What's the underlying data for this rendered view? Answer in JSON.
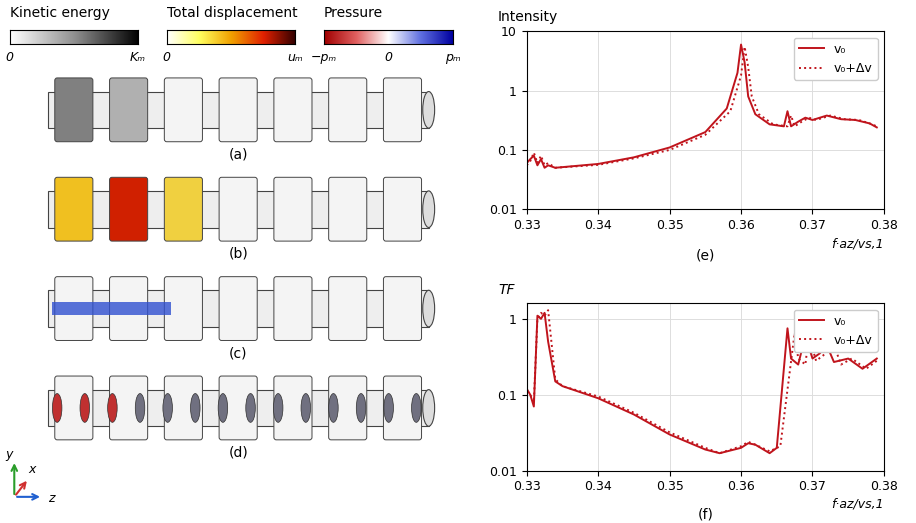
{
  "figure_panels": {
    "labels": [
      "(a)",
      "(b)",
      "(c)",
      "(d)"
    ],
    "axes_triad": [
      "y",
      "x",
      "z"
    ]
  },
  "colorbars": [
    {
      "label": "Kinetic energy",
      "ticks": [
        "0",
        "Kₘ"
      ]
    },
    {
      "label": "Total displacement",
      "ticks": [
        "0",
        "uₘ"
      ]
    },
    {
      "label": "Pressure",
      "ticks": [
        "−pₘ",
        "0",
        "pₘ"
      ]
    }
  ],
  "chart_data": [
    {
      "type": "line",
      "title": "Intensity",
      "x_label": "f·az/vs,1",
      "panel_label": "(e)",
      "log": "y",
      "grid": true,
      "legend": "upper right",
      "xlim": [
        0.33,
        0.38
      ],
      "xticks": [
        0.33,
        0.34,
        0.35,
        0.36,
        0.37,
        0.38
      ],
      "ylim": [
        0.01,
        10
      ],
      "yticks": [
        0.01,
        0.1,
        1,
        10
      ],
      "series": [
        {
          "name": "v₀",
          "color": "#c0141c",
          "line_style": "solid",
          "x": [
            0.33,
            0.3305,
            0.331,
            0.3315,
            0.332,
            0.3325,
            0.333,
            0.334,
            0.34,
            0.345,
            0.35,
            0.355,
            0.358,
            0.3595,
            0.36,
            0.3605,
            0.361,
            0.362,
            0.364,
            0.366,
            0.3665,
            0.367,
            0.368,
            0.369,
            0.37,
            0.372,
            0.374,
            0.376,
            0.378,
            0.379
          ],
          "values": [
            0.06,
            0.07,
            0.08,
            0.055,
            0.07,
            0.05,
            0.055,
            0.05,
            0.058,
            0.075,
            0.11,
            0.2,
            0.5,
            2.0,
            6.0,
            3.0,
            0.8,
            0.4,
            0.27,
            0.25,
            0.45,
            0.25,
            0.3,
            0.35,
            0.32,
            0.38,
            0.33,
            0.32,
            0.28,
            0.24
          ]
        },
        {
          "name": "v₀+Δv",
          "color": "#c0141c",
          "line_style": "dotted",
          "x": [
            0.33,
            0.3305,
            0.331,
            0.3315,
            0.332,
            0.3325,
            0.333,
            0.334,
            0.34,
            0.345,
            0.35,
            0.355,
            0.3585,
            0.36,
            0.3605,
            0.361,
            0.3615,
            0.3625,
            0.3645,
            0.3665,
            0.367,
            0.3675,
            0.3685,
            0.3695,
            0.3705,
            0.3725,
            0.3745,
            0.3765,
            0.378,
            0.379
          ],
          "values": [
            0.055,
            0.065,
            0.09,
            0.06,
            0.08,
            0.055,
            0.06,
            0.05,
            0.056,
            0.072,
            0.1,
            0.18,
            0.45,
            1.8,
            5.5,
            2.5,
            0.8,
            0.4,
            0.27,
            0.25,
            0.38,
            0.25,
            0.3,
            0.35,
            0.32,
            0.38,
            0.33,
            0.32,
            0.28,
            0.25
          ]
        }
      ]
    },
    {
      "type": "line",
      "title": "TF",
      "x_label": "f·az/vs,1",
      "panel_label": "(f)",
      "log": "y",
      "grid": true,
      "legend": "upper right",
      "xlim": [
        0.33,
        0.38
      ],
      "xticks": [
        0.33,
        0.34,
        0.35,
        0.36,
        0.37,
        0.38
      ],
      "ylim": [
        0.01,
        1.6
      ],
      "yticks": [
        0.01,
        0.1,
        1
      ],
      "series": [
        {
          "name": "v₀",
          "color": "#c0141c",
          "line_style": "solid",
          "x": [
            0.33,
            0.3305,
            0.331,
            0.3315,
            0.332,
            0.3325,
            0.333,
            0.334,
            0.335,
            0.34,
            0.345,
            0.35,
            0.355,
            0.357,
            0.36,
            0.361,
            0.362,
            0.364,
            0.365,
            0.3665,
            0.367,
            0.368,
            0.369,
            0.37,
            0.371,
            0.372,
            0.373,
            0.375,
            0.377,
            0.379
          ],
          "values": [
            0.12,
            0.1,
            0.07,
            1.1,
            1.0,
            1.2,
            0.5,
            0.15,
            0.13,
            0.09,
            0.055,
            0.03,
            0.019,
            0.017,
            0.02,
            0.023,
            0.022,
            0.017,
            0.02,
            0.75,
            0.3,
            0.25,
            0.6,
            0.3,
            0.35,
            0.45,
            0.27,
            0.3,
            0.22,
            0.3
          ]
        },
        {
          "name": "v₀+Δv",
          "color": "#c0141c",
          "line_style": "dotted",
          "x": [
            0.33,
            0.3305,
            0.331,
            0.3315,
            0.332,
            0.3325,
            0.333,
            0.334,
            0.335,
            0.34,
            0.345,
            0.35,
            0.355,
            0.357,
            0.36,
            0.361,
            0.362,
            0.364,
            0.3655,
            0.3675,
            0.368,
            0.369,
            0.3695,
            0.3705,
            0.3715,
            0.373,
            0.374,
            0.3755,
            0.3775,
            0.379
          ],
          "values": [
            0.11,
            0.1,
            0.08,
            1.0,
            1.2,
            1.1,
            1.3,
            0.16,
            0.13,
            0.095,
            0.058,
            0.032,
            0.02,
            0.017,
            0.021,
            0.024,
            0.022,
            0.018,
            0.021,
            0.65,
            0.3,
            0.25,
            0.6,
            0.28,
            0.33,
            0.45,
            0.25,
            0.3,
            0.22,
            0.28
          ]
        }
      ]
    }
  ]
}
